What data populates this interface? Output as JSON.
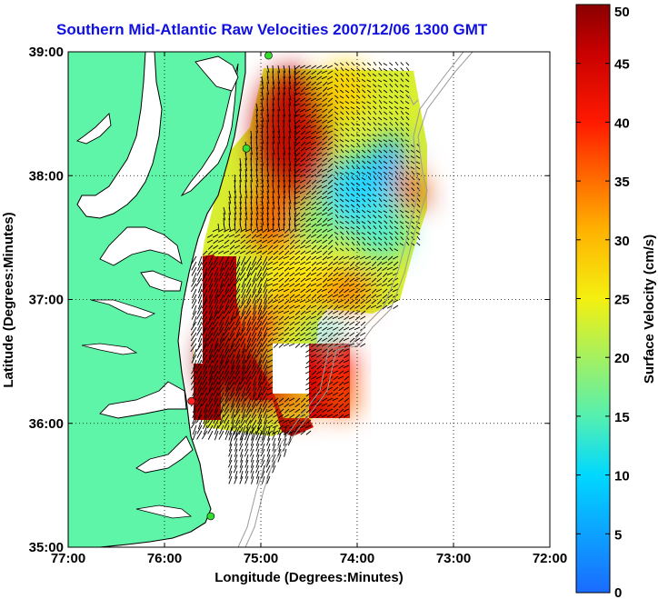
{
  "title": "Southern Mid-Atlantic Raw Velocities 2007/12/06 1300 GMT",
  "map": {
    "x_label": "Longitude (Degrees:Minutes)",
    "y_label": "Latitude (Degrees:Minutes)",
    "x_ticks": [
      "77:00",
      "76:00",
      "75:00",
      "74:00",
      "73:00",
      "72:00"
    ],
    "y_ticks": [
      "39:00",
      "38:00",
      "37:00",
      "36:00",
      "35:00"
    ],
    "lon_range": [
      -77,
      -72
    ],
    "lat_range": [
      35,
      39
    ],
    "grid": "dotted",
    "colors": {
      "land": "#5ff5a8",
      "water": "#ffffff",
      "coastline": "#000000",
      "bathymetry": "#9a9a9a",
      "station": "#33dd33",
      "station_alert": "#ff2222"
    }
  },
  "colorbar": {
    "label": "Surface Velocity (cm/s)",
    "ticks": [
      "0",
      "5",
      "10",
      "15",
      "20",
      "25",
      "30",
      "35",
      "40",
      "45",
      "50"
    ],
    "range": [
      0,
      50
    ]
  },
  "chart_data": {
    "type": "heatmap",
    "title": "Southern Mid-Atlantic Raw Velocities 2007/12/06 1300 GMT",
    "xlabel": "Longitude (Degrees:Minutes)",
    "ylabel": "Latitude (Degrees:Minutes)",
    "xlim": [
      -77,
      -72
    ],
    "ylim": [
      35,
      39
    ],
    "color_range": [
      0,
      50
    ],
    "colorbar_label": "Surface Velocity (cm/s)",
    "velocity_zones": [
      {
        "lon": -75.1,
        "lat": 38.4,
        "speed": 45
      },
      {
        "lon": -74.2,
        "lat": 37.9,
        "speed": 10
      },
      {
        "lon": -73.9,
        "lat": 37.5,
        "speed": 14
      },
      {
        "lon": -75.5,
        "lat": 36.6,
        "speed": 48
      },
      {
        "lon": -74.6,
        "lat": 37.3,
        "speed": 27
      },
      {
        "lon": -74.0,
        "lat": 36.4,
        "speed": 46
      },
      {
        "lon": -73.4,
        "lat": 37.9,
        "speed": 38
      }
    ],
    "stations": [
      {
        "lon": -74.92,
        "lat": 38.97,
        "status": "ok"
      },
      {
        "lon": -75.15,
        "lat": 38.22,
        "status": "ok"
      },
      {
        "lon": -75.72,
        "lat": 36.18,
        "status": "alert"
      },
      {
        "lon": -75.52,
        "lat": 35.25,
        "status": "ok"
      }
    ]
  }
}
